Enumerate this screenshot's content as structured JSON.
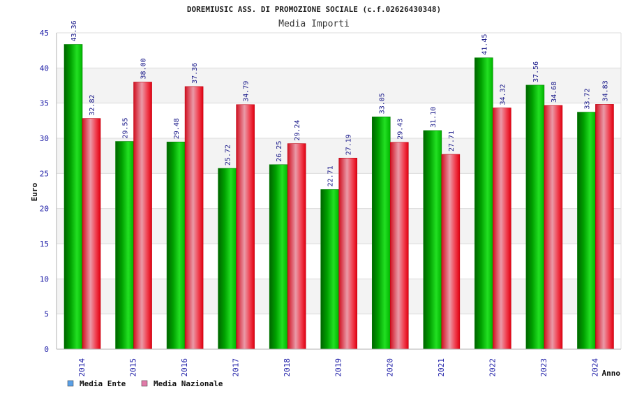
{
  "chart_data": {
    "type": "bar",
    "title": "DOREMIUSIC ASS. DI PROMOZIONE SOCIALE (c.f.02626430348)",
    "subtitle": "Media Importi",
    "xlabel": "Anno",
    "ylabel": "Euro",
    "ylim": [
      0,
      45
    ],
    "yticks": [
      0,
      5,
      10,
      15,
      20,
      25,
      30,
      35,
      40,
      45
    ],
    "grid": true,
    "legend_position": "bottom-left",
    "categories": [
      "2014",
      "2015",
      "2016",
      "2017",
      "2018",
      "2019",
      "2020",
      "2021",
      "2022",
      "2023",
      "2024"
    ],
    "series": [
      {
        "name": "Media Ente",
        "color": "#00b000",
        "legend_color": "#5aa0e6",
        "values": [
          43.36,
          29.55,
          29.48,
          25.72,
          26.25,
          22.71,
          33.05,
          31.1,
          41.45,
          37.56,
          33.72
        ],
        "labels": [
          "43.36",
          "29.55",
          "29.48",
          "25.72",
          "26.25",
          "22.71",
          "33.05",
          "31.10",
          "41.45",
          "37.56",
          "33.72"
        ]
      },
      {
        "name": "Media Nazionale",
        "color": "#e8202a",
        "legend_color": "#e07aa8",
        "values": [
          32.82,
          38.0,
          37.36,
          34.79,
          29.24,
          27.19,
          29.43,
          27.71,
          34.32,
          34.68,
          34.83
        ],
        "labels": [
          "32.82",
          "38.00",
          "37.36",
          "34.79",
          "29.24",
          "27.19",
          "29.43",
          "27.71",
          "34.32",
          "34.68",
          "34.83"
        ]
      }
    ]
  }
}
